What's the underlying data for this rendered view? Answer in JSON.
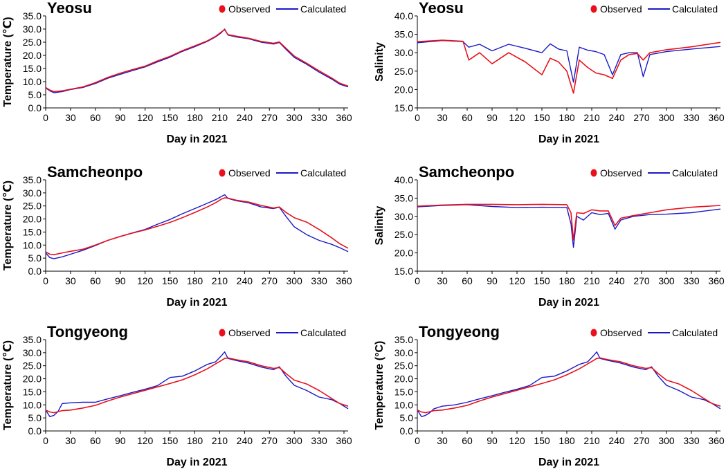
{
  "figure": {
    "observed_label": "Observed",
    "calculated_label": "Calculated",
    "observed_color": "#e8101a",
    "calculated_color": "#1818c8"
  },
  "chart_data": [
    {
      "type": "line",
      "station": "Yeosu",
      "xlabel": "Day in 2021",
      "ylabel": "Temperature (℃)",
      "xlim": [
        0,
        365
      ],
      "xticks": [
        0,
        30,
        60,
        90,
        120,
        150,
        180,
        210,
        240,
        270,
        300,
        330,
        360
      ],
      "ylim": [
        0.0,
        35.0
      ],
      "yticks": [
        "0.0",
        "5.0",
        "10.0",
        "15.0",
        "20.0",
        "25.0",
        "30.0",
        "35.0"
      ],
      "series": [
        {
          "name": "Calculated",
          "x": [
            0,
            5,
            10,
            20,
            30,
            45,
            60,
            75,
            90,
            105,
            120,
            135,
            150,
            165,
            180,
            195,
            205,
            212,
            216,
            220,
            230,
            245,
            260,
            275,
            282,
            290,
            300,
            315,
            330,
            345,
            355,
            365
          ],
          "values": [
            7.6,
            6.5,
            5.8,
            6.2,
            7.0,
            7.8,
            9.3,
            11.3,
            12.8,
            14.2,
            15.6,
            17.5,
            19.3,
            21.5,
            23.3,
            25.3,
            27.0,
            28.6,
            30.0,
            27.7,
            27.0,
            26.3,
            25.0,
            24.3,
            24.9,
            22.3,
            19.2,
            16.6,
            13.6,
            11.0,
            9.0,
            8.0
          ]
        },
        {
          "name": "Observed",
          "x": [
            0,
            5,
            10,
            20,
            30,
            45,
            60,
            75,
            90,
            105,
            120,
            135,
            150,
            165,
            180,
            195,
            205,
            212,
            216,
            220,
            230,
            245,
            260,
            275,
            282,
            290,
            300,
            315,
            330,
            345,
            355,
            365
          ],
          "values": [
            7.8,
            6.8,
            6.2,
            6.5,
            7.1,
            8.0,
            9.6,
            11.6,
            13.2,
            14.6,
            15.9,
            17.9,
            19.6,
            21.8,
            23.6,
            25.5,
            27.2,
            28.9,
            29.7,
            27.9,
            27.3,
            26.5,
            25.3,
            24.6,
            25.1,
            22.7,
            19.7,
            17.0,
            14.1,
            11.4,
            9.4,
            8.3
          ]
        }
      ]
    },
    {
      "type": "line",
      "station": "Yeosu",
      "xlabel": "Day in 2021",
      "ylabel": "Salinity",
      "xlim": [
        0,
        365
      ],
      "xticks": [
        0,
        30,
        60,
        90,
        120,
        150,
        180,
        210,
        240,
        270,
        300,
        330,
        360
      ],
      "ylim": [
        15.0,
        40.0
      ],
      "yticks": [
        "15.0",
        "20.0",
        "25.0",
        "30.0",
        "35.0",
        "40.0"
      ],
      "series": [
        {
          "name": "Calculated",
          "x": [
            0,
            30,
            55,
            62,
            75,
            90,
            110,
            130,
            150,
            160,
            170,
            180,
            188,
            195,
            205,
            215,
            225,
            235,
            245,
            255,
            265,
            272,
            280,
            300,
            330,
            365
          ],
          "values": [
            32.7,
            33.3,
            33.0,
            31.5,
            32.3,
            30.5,
            32.3,
            31.2,
            30.0,
            32.4,
            31.0,
            30.5,
            22.0,
            31.5,
            30.7,
            30.3,
            29.5,
            24.0,
            29.5,
            30.0,
            30.0,
            23.5,
            29.5,
            30.3,
            31.0,
            31.7
          ]
        },
        {
          "name": "Observed",
          "x": [
            0,
            30,
            55,
            62,
            75,
            90,
            110,
            130,
            150,
            160,
            170,
            180,
            188,
            195,
            205,
            215,
            225,
            235,
            245,
            255,
            265,
            272,
            280,
            300,
            330,
            365
          ],
          "values": [
            33.0,
            33.4,
            33.1,
            28.0,
            30.0,
            27.0,
            30.0,
            27.5,
            24.0,
            28.5,
            27.5,
            25.0,
            19.0,
            28.0,
            26.0,
            24.5,
            24.0,
            23.0,
            28.0,
            29.5,
            29.8,
            28.0,
            30.0,
            30.8,
            31.6,
            32.8
          ]
        }
      ]
    },
    {
      "type": "line",
      "station": "Samcheonpo",
      "xlabel": "Day in 2021",
      "ylabel": "Temperature (℃)",
      "xlim": [
        0,
        365
      ],
      "xticks": [
        0,
        30,
        60,
        90,
        120,
        150,
        180,
        210,
        240,
        270,
        300,
        330,
        360
      ],
      "ylim": [
        0.0,
        35.0
      ],
      "yticks": [
        "0.0",
        "5.0",
        "10.0",
        "15.0",
        "20.0",
        "25.0",
        "30.0",
        "35.0"
      ],
      "series": [
        {
          "name": "Calculated",
          "x": [
            0,
            5,
            10,
            20,
            30,
            45,
            60,
            75,
            90,
            105,
            120,
            135,
            150,
            165,
            180,
            195,
            205,
            212,
            216,
            220,
            230,
            245,
            260,
            275,
            282,
            290,
            300,
            315,
            330,
            345,
            355,
            365
          ],
          "values": [
            7.0,
            5.2,
            4.8,
            5.5,
            6.5,
            8.0,
            9.8,
            11.8,
            13.3,
            14.7,
            16.0,
            18.0,
            19.8,
            22.0,
            24.0,
            26.0,
            27.4,
            28.6,
            29.3,
            27.9,
            27.0,
            26.2,
            24.6,
            24.0,
            24.5,
            21.0,
            17.0,
            14.0,
            11.8,
            10.3,
            9.0,
            7.5
          ]
        },
        {
          "name": "Observed",
          "x": [
            0,
            5,
            10,
            20,
            30,
            45,
            60,
            75,
            90,
            105,
            120,
            135,
            150,
            165,
            180,
            195,
            205,
            212,
            216,
            220,
            230,
            245,
            260,
            275,
            282,
            290,
            300,
            315,
            330,
            345,
            355,
            365
          ],
          "values": [
            7.4,
            6.5,
            6.3,
            7.0,
            7.6,
            8.4,
            10.0,
            11.8,
            13.3,
            14.6,
            15.8,
            17.2,
            18.7,
            20.5,
            22.5,
            24.6,
            26.2,
            27.6,
            28.1,
            28.0,
            27.2,
            26.5,
            25.2,
            24.2,
            24.6,
            22.5,
            20.5,
            18.8,
            16.0,
            12.8,
            10.5,
            8.8
          ]
        }
      ]
    },
    {
      "type": "line",
      "station": "Samcheonpo",
      "xlabel": "Day in 2021",
      "ylabel": "Salinity",
      "xlim": [
        0,
        365
      ],
      "xticks": [
        0,
        30,
        60,
        90,
        120,
        150,
        180,
        210,
        240,
        270,
        300,
        330,
        360
      ],
      "ylim": [
        15.0,
        40.0
      ],
      "yticks": [
        "15.0",
        "20.0",
        "25.0",
        "30.0",
        "35.0",
        "40.0"
      ],
      "series": [
        {
          "name": "Calculated",
          "x": [
            0,
            30,
            60,
            90,
            120,
            150,
            180,
            185,
            188,
            192,
            200,
            210,
            220,
            230,
            238,
            245,
            260,
            280,
            300,
            330,
            365
          ],
          "values": [
            32.6,
            33.0,
            33.2,
            32.7,
            32.4,
            32.5,
            32.4,
            28.0,
            21.5,
            30.0,
            29.0,
            31.0,
            30.5,
            30.8,
            26.5,
            29.0,
            30.0,
            30.5,
            30.6,
            31.0,
            32.0
          ]
        },
        {
          "name": "Observed",
          "x": [
            0,
            30,
            60,
            90,
            120,
            150,
            180,
            185,
            188,
            192,
            200,
            210,
            220,
            230,
            238,
            245,
            260,
            280,
            300,
            330,
            365
          ],
          "values": [
            32.8,
            33.1,
            33.3,
            33.3,
            33.2,
            33.3,
            33.2,
            31.0,
            23.5,
            31.0,
            30.8,
            31.8,
            31.5,
            31.5,
            27.5,
            29.5,
            30.2,
            31.0,
            31.8,
            32.5,
            33.0
          ]
        }
      ]
    },
    {
      "type": "line",
      "station": "Tongyeong",
      "xlabel": "Day in 2021",
      "ylabel": "Temperature (℃)",
      "xlim": [
        0,
        365
      ],
      "xticks": [
        0,
        30,
        60,
        90,
        120,
        150,
        180,
        210,
        240,
        270,
        300,
        330,
        360
      ],
      "ylim": [
        0.0,
        35.0
      ],
      "yticks": [
        "0.0",
        "5.0",
        "10.0",
        "15.0",
        "20.0",
        "25.0",
        "30.0",
        "35.0"
      ],
      "series": [
        {
          "name": "Calculated",
          "x": [
            0,
            5,
            10,
            15,
            20,
            30,
            45,
            60,
            75,
            90,
            105,
            120,
            135,
            150,
            165,
            180,
            195,
            205,
            212,
            216,
            220,
            230,
            245,
            260,
            275,
            282,
            290,
            300,
            315,
            330,
            345,
            355,
            365
          ],
          "values": [
            8.0,
            5.5,
            6.0,
            7.5,
            10.5,
            10.8,
            11.0,
            11.0,
            12.3,
            13.5,
            14.8,
            16.0,
            17.4,
            20.5,
            21.0,
            23.0,
            25.5,
            26.5,
            28.8,
            30.3,
            27.8,
            27.0,
            26.0,
            24.5,
            23.5,
            24.6,
            21.0,
            17.5,
            15.5,
            13.0,
            12.0,
            10.5,
            8.5
          ]
        },
        {
          "name": "Observed",
          "x": [
            0,
            5,
            10,
            15,
            20,
            30,
            45,
            60,
            75,
            90,
            105,
            120,
            135,
            150,
            165,
            180,
            195,
            205,
            212,
            216,
            220,
            230,
            245,
            260,
            275,
            282,
            290,
            300,
            315,
            330,
            345,
            355,
            365
          ],
          "values": [
            8.0,
            7.3,
            7.0,
            7.4,
            7.8,
            8.0,
            8.8,
            9.8,
            11.5,
            13.0,
            14.3,
            15.6,
            16.9,
            18.2,
            19.6,
            21.5,
            23.8,
            25.7,
            27.0,
            27.8,
            28.0,
            27.3,
            26.5,
            25.0,
            24.0,
            24.3,
            22.0,
            19.5,
            18.0,
            15.5,
            12.5,
            10.5,
            9.5
          ]
        }
      ]
    },
    {
      "type": "line",
      "station": "Tongyeong",
      "xlabel": "Day in 2021",
      "ylabel": "Temperature (°C)",
      "xlim": [
        0,
        365
      ],
      "xticks": [
        0,
        30,
        60,
        90,
        120,
        150,
        180,
        210,
        240,
        270,
        300,
        330,
        360
      ],
      "ylim": [
        0.0,
        35.0
      ],
      "yticks": [
        "0.0",
        "5.0",
        "10.0",
        "15.0",
        "20.0",
        "25.0",
        "30.0",
        "35.0"
      ],
      "series": [
        {
          "name": "Calculated",
          "x": [
            0,
            5,
            10,
            15,
            20,
            30,
            45,
            60,
            75,
            90,
            105,
            120,
            135,
            150,
            165,
            180,
            195,
            205,
            212,
            216,
            220,
            230,
            245,
            260,
            275,
            282,
            290,
            300,
            315,
            330,
            345,
            355,
            365
          ],
          "values": [
            8.0,
            5.5,
            6.0,
            7.0,
            8.5,
            9.5,
            10.0,
            11.0,
            12.3,
            13.5,
            14.8,
            16.0,
            17.4,
            20.5,
            21.0,
            23.0,
            25.5,
            26.5,
            28.8,
            30.3,
            27.8,
            27.0,
            26.0,
            24.5,
            23.5,
            24.6,
            21.0,
            17.5,
            15.5,
            13.0,
            12.0,
            10.5,
            8.5
          ]
        },
        {
          "name": "Observed",
          "x": [
            0,
            5,
            10,
            15,
            20,
            30,
            45,
            60,
            75,
            90,
            105,
            120,
            135,
            150,
            165,
            180,
            195,
            205,
            212,
            216,
            220,
            230,
            245,
            260,
            275,
            282,
            290,
            300,
            315,
            330,
            345,
            355,
            365
          ],
          "values": [
            8.0,
            7.3,
            7.0,
            7.4,
            7.8,
            8.0,
            8.8,
            9.8,
            11.5,
            13.0,
            14.3,
            15.6,
            16.9,
            18.2,
            19.6,
            21.5,
            23.8,
            25.7,
            27.0,
            27.8,
            28.0,
            27.3,
            26.5,
            25.0,
            24.0,
            24.3,
            22.0,
            19.5,
            18.0,
            15.5,
            12.5,
            10.5,
            9.5
          ]
        }
      ]
    }
  ]
}
